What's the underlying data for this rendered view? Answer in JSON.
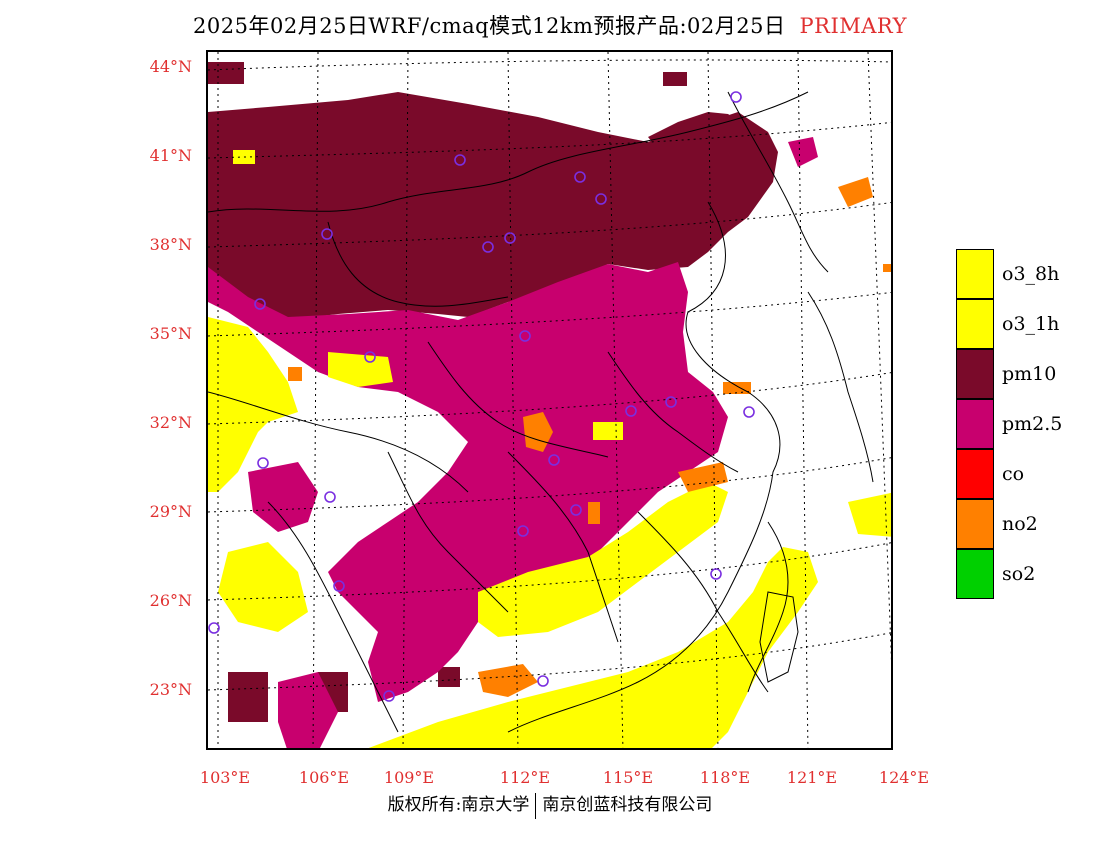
{
  "title": {
    "text": "2025年02月25日WRF/cmaq模式12km预报产品:02月25日",
    "tag": "PRIMARY"
  },
  "axes": {
    "lat_labels": [
      "44°N",
      "41°N",
      "38°N",
      "35°N",
      "32°N",
      "29°N",
      "26°N",
      "23°N"
    ],
    "lon_labels": [
      "103°E",
      "106°E",
      "109°E",
      "112°E",
      "115°E",
      "118°E",
      "121°E",
      "124°E"
    ]
  },
  "legend": [
    {
      "label": "o3_8h",
      "color": "#ffff00"
    },
    {
      "label": "o3_1h",
      "color": "#ffff00"
    },
    {
      "label": "pm10",
      "color": "#7a0a2a"
    },
    {
      "label": "pm2.5",
      "color": "#c8006e"
    },
    {
      "label": "co",
      "color": "#ff0000"
    },
    {
      "label": "no2",
      "color": "#ff8000"
    },
    {
      "label": "so2",
      "color": "#00d000"
    }
  ],
  "footer": {
    "left": "版权所有:南京大学",
    "right": "南京创蓝科技有限公司"
  }
}
